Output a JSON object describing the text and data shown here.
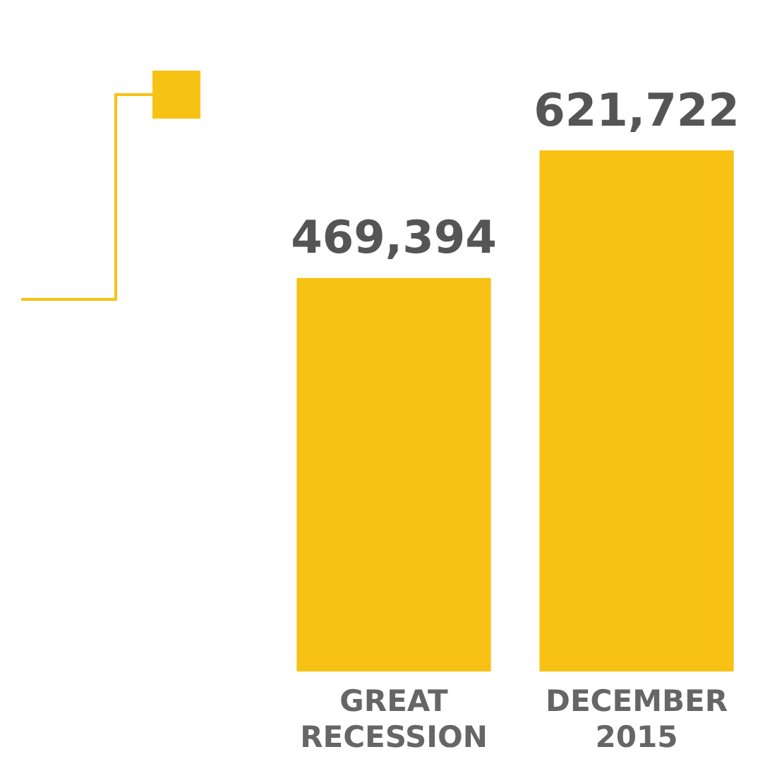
{
  "chart_data": {
    "type": "bar",
    "categories": [
      "GREAT RECESSION",
      "DECEMBER 2015"
    ],
    "values": [
      469394,
      621722
    ],
    "color": "#f7c213",
    "data_labels": true,
    "value_labels": [
      "469,394",
      "621,722"
    ],
    "grid": false,
    "legend": false
  }
}
